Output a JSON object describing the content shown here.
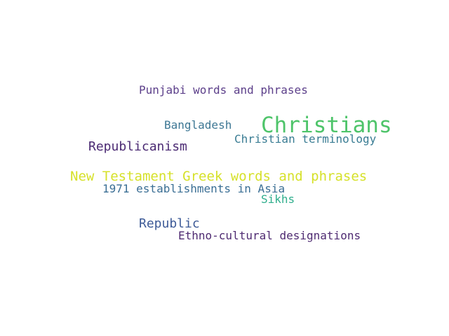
{
  "words": [
    {
      "text": "Punjabi words and phrases",
      "color": "#5c3f8a"
    },
    {
      "text": "Bangladesh",
      "color": "#3d7794"
    },
    {
      "text": "Christians",
      "color": "#4ec46a"
    },
    {
      "text": "Christian terminology",
      "color": "#397c93"
    },
    {
      "text": "Republicanism",
      "color": "#4b2a73"
    },
    {
      "text": "New Testament Greek words and phrases",
      "color": "#d6e12a"
    },
    {
      "text": "1971 establishments in Asia",
      "color": "#3a6e94"
    },
    {
      "text": "Sikhs",
      "color": "#2fae8c"
    },
    {
      "text": "Republic",
      "color": "#3d5a97"
    },
    {
      "text": "Ethno-cultural designations",
      "color": "#4f2b72"
    }
  ]
}
